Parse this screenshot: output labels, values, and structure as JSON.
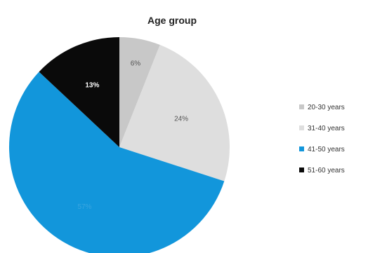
{
  "chart_data": {
    "type": "pie",
    "title": "Age group",
    "slices": [
      {
        "label": "20-30 years",
        "value": 6,
        "display": "6%",
        "color": "#c8c8c8",
        "label_color": "#555555",
        "label_weight": "normal"
      },
      {
        "label": "31-40 years",
        "value": 24,
        "display": "24%",
        "color": "#dedede",
        "label_color": "#555555",
        "label_weight": "normal"
      },
      {
        "label": "41-50 years",
        "value": 57,
        "display": "57%",
        "color": "#1296db",
        "label_color": "#3aa6e0",
        "label_weight": "normal"
      },
      {
        "label": "51-60 years",
        "value": 13,
        "display": "13%",
        "color": "#0a0a0a",
        "label_color": "#ffffff",
        "label_weight": "bold"
      }
    ],
    "start_angle_deg": 0,
    "direction": "clockwise",
    "legend": {
      "position": "right"
    }
  }
}
